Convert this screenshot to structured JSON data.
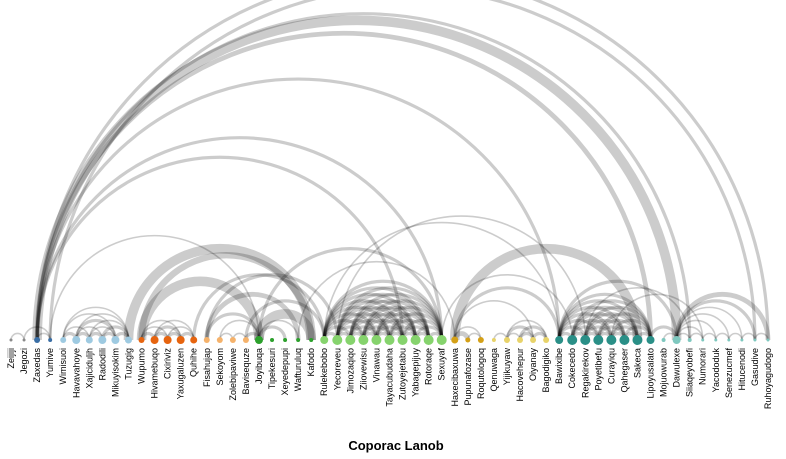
{
  "title": "Coporac Lanob",
  "group_colors": {
    "g1": "#8a8a8a",
    "g2": "#3a6ea5",
    "g3": "#9ecae1",
    "g4": "#e6640f",
    "g5": "#f5b26b",
    "g6": "#2ca02c",
    "g7": "#86d36d",
    "g8": "#d4a017",
    "g9": "#e8d36a",
    "g10": "#2a8f87",
    "g11": "#7fc8bf"
  },
  "nodes": [
    {
      "name": "Zeijiji",
      "group": "g1",
      "size": 1.5
    },
    {
      "name": "Jegozi",
      "group": "g1",
      "size": 1.5
    },
    {
      "name": "Zaxedas",
      "group": "g2",
      "size": 3
    },
    {
      "name": "Yumive",
      "group": "g2",
      "size": 2
    },
    {
      "name": "Wimisuoi",
      "group": "g3",
      "size": 3
    },
    {
      "name": "Havavahoye",
      "group": "g3",
      "size": 4
    },
    {
      "name": "Xajiciduljh",
      "group": "g3",
      "size": 3.5
    },
    {
      "name": "Radodili",
      "group": "g3",
      "size": 4
    },
    {
      "name": "Mikuyisokim",
      "group": "g3",
      "size": 4
    },
    {
      "name": "Tuzugig",
      "group": "g3",
      "size": 3.5
    },
    {
      "name": "Wupumo",
      "group": "g4",
      "size": 3
    },
    {
      "name": "Hivamebuqo",
      "group": "g4",
      "size": 4
    },
    {
      "name": "Cixiriviz",
      "group": "g4",
      "size": 4
    },
    {
      "name": "Yaxugaluzen",
      "group": "g4",
      "size": 4
    },
    {
      "name": "Quhihe",
      "group": "g4",
      "size": 3.5
    },
    {
      "name": "Fisahujap",
      "group": "g5",
      "size": 3
    },
    {
      "name": "Sekoyom",
      "group": "g5",
      "size": 3
    },
    {
      "name": "Zolebipaviwe",
      "group": "g5",
      "size": 3
    },
    {
      "name": "Bavisequze",
      "group": "g5",
      "size": 3
    },
    {
      "name": "Joyibuqa",
      "group": "g6",
      "size": 4
    },
    {
      "name": "Tipekesuri",
      "group": "g6",
      "size": 2
    },
    {
      "name": "Xeyedepupi",
      "group": "g6",
      "size": 2
    },
    {
      "name": "Wafturuluq",
      "group": "g6",
      "size": 2
    },
    {
      "name": "Kafodo",
      "group": "g6",
      "size": 2
    },
    {
      "name": "Rulekebobo",
      "group": "g7",
      "size": 4
    },
    {
      "name": "Yecoreveu",
      "group": "g7",
      "size": 5
    },
    {
      "name": "Jimozaqiqo",
      "group": "g7",
      "size": 5
    },
    {
      "name": "Ziiovewisu",
      "group": "g7",
      "size": 5
    },
    {
      "name": "Vinawau",
      "group": "g7",
      "size": 5
    },
    {
      "name": "Tayacubudaha",
      "group": "g7",
      "size": 5
    },
    {
      "name": "Zutoyejetabu",
      "group": "g7",
      "size": 5
    },
    {
      "name": "Yabagepijuy",
      "group": "g7",
      "size": 5
    },
    {
      "name": "Rotoraqe",
      "group": "g7",
      "size": 5
    },
    {
      "name": "Sexuyaf",
      "group": "g7",
      "size": 5
    },
    {
      "name": "Haxecibaxuwa",
      "group": "g8",
      "size": 3.5
    },
    {
      "name": "Pupunafozase",
      "group": "g8",
      "size": 2.5
    },
    {
      "name": "Roqutologoq",
      "group": "g8",
      "size": 3
    },
    {
      "name": "Qenuwaga",
      "group": "g9",
      "size": 2
    },
    {
      "name": "Yijikuyaw",
      "group": "g9",
      "size": 3
    },
    {
      "name": "Hacovehepur",
      "group": "g9",
      "size": 3
    },
    {
      "name": "Oiyanay",
      "group": "g9",
      "size": 3
    },
    {
      "name": "Bagodigiko",
      "group": "g9",
      "size": 3
    },
    {
      "name": "Bawixibe",
      "group": "g10",
      "size": 4
    },
    {
      "name": "Cokecedo",
      "group": "g10",
      "size": 5
    },
    {
      "name": "Regakirekov",
      "group": "g10",
      "size": 5
    },
    {
      "name": "Poyetibefu",
      "group": "g10",
      "size": 5
    },
    {
      "name": "Curayiqu",
      "group": "g10",
      "size": 5
    },
    {
      "name": "Qahegaser",
      "group": "g10",
      "size": 5
    },
    {
      "name": "Sakeca",
      "group": "g10",
      "size": 5
    },
    {
      "name": "Lipoyusalato",
      "group": "g10",
      "size": 4
    },
    {
      "name": "Mojuowurab",
      "group": "g11",
      "size": 2
    },
    {
      "name": "Dawulexe",
      "group": "g11",
      "size": 4
    },
    {
      "name": "Siiaqeyobefi",
      "group": "g11",
      "size": 2
    },
    {
      "name": "Numorari",
      "group": "g11",
      "size": 1.5
    },
    {
      "name": "Yacododuk",
      "group": "g11",
      "size": 1.5
    },
    {
      "name": "Senezucmef",
      "group": "g11",
      "size": 1.5
    },
    {
      "name": "Hitucenodi",
      "group": "g11",
      "size": 1.5
    },
    {
      "name": "Gasudive",
      "group": "g11",
      "size": 1.5
    },
    {
      "name": "Ruhoyagudogo",
      "group": "g11",
      "size": 1.5
    }
  ],
  "links": [
    [
      2,
      51,
      6
    ],
    [
      2,
      49,
      3
    ],
    [
      2,
      33,
      2
    ],
    [
      2,
      42,
      2
    ],
    [
      2,
      30,
      2
    ],
    [
      3,
      19,
      1
    ],
    [
      2,
      58,
      2
    ],
    [
      3,
      57,
      2
    ],
    [
      2,
      52,
      2
    ],
    [
      0,
      1,
      1
    ],
    [
      1,
      3,
      1
    ],
    [
      2,
      3,
      1
    ],
    [
      4,
      5,
      2
    ],
    [
      4,
      6,
      1
    ],
    [
      5,
      6,
      2
    ],
    [
      5,
      7,
      1
    ],
    [
      5,
      8,
      2
    ],
    [
      5,
      9,
      1
    ],
    [
      6,
      7,
      2
    ],
    [
      6,
      8,
      1
    ],
    [
      6,
      9,
      1
    ],
    [
      7,
      8,
      2
    ],
    [
      7,
      9,
      2
    ],
    [
      8,
      9,
      2
    ],
    [
      4,
      9,
      1
    ],
    [
      4,
      8,
      1
    ],
    [
      10,
      11,
      2
    ],
    [
      10,
      12,
      1
    ],
    [
      10,
      13,
      1
    ],
    [
      11,
      12,
      2
    ],
    [
      11,
      13,
      2
    ],
    [
      11,
      14,
      1
    ],
    [
      12,
      13,
      2
    ],
    [
      12,
      14,
      1
    ],
    [
      13,
      14,
      2
    ],
    [
      9,
      23,
      6
    ],
    [
      10,
      23,
      4
    ],
    [
      10,
      19,
      6
    ],
    [
      14,
      24,
      2
    ],
    [
      15,
      19,
      2
    ],
    [
      15,
      22,
      3
    ],
    [
      15,
      25,
      2
    ],
    [
      16,
      17,
      1
    ],
    [
      16,
      19,
      1
    ],
    [
      17,
      18,
      1
    ],
    [
      18,
      19,
      2
    ],
    [
      19,
      21,
      2
    ],
    [
      19,
      23,
      6
    ],
    [
      18,
      24,
      2
    ],
    [
      19,
      22,
      1
    ],
    [
      19,
      33,
      2
    ],
    [
      24,
      25,
      2
    ],
    [
      24,
      26,
      2
    ],
    [
      24,
      27,
      2
    ],
    [
      24,
      28,
      2
    ],
    [
      24,
      29,
      2
    ],
    [
      24,
      30,
      2
    ],
    [
      24,
      31,
      2
    ],
    [
      24,
      32,
      2
    ],
    [
      24,
      33,
      2
    ],
    [
      25,
      26,
      2
    ],
    [
      25,
      27,
      2
    ],
    [
      25,
      28,
      2
    ],
    [
      25,
      29,
      2
    ],
    [
      25,
      30,
      2
    ],
    [
      25,
      31,
      2
    ],
    [
      25,
      32,
      2
    ],
    [
      25,
      33,
      2
    ],
    [
      26,
      27,
      2
    ],
    [
      26,
      28,
      2
    ],
    [
      26,
      29,
      2
    ],
    [
      26,
      30,
      2
    ],
    [
      26,
      31,
      2
    ],
    [
      26,
      32,
      2
    ],
    [
      26,
      33,
      2
    ],
    [
      27,
      28,
      2
    ],
    [
      27,
      29,
      2
    ],
    [
      27,
      30,
      2
    ],
    [
      27,
      31,
      2
    ],
    [
      27,
      32,
      2
    ],
    [
      27,
      33,
      2
    ],
    [
      28,
      29,
      2
    ],
    [
      28,
      30,
      2
    ],
    [
      28,
      31,
      2
    ],
    [
      28,
      32,
      2
    ],
    [
      28,
      33,
      2
    ],
    [
      29,
      30,
      2
    ],
    [
      29,
      31,
      2
    ],
    [
      29,
      32,
      2
    ],
    [
      29,
      33,
      2
    ],
    [
      30,
      31,
      2
    ],
    [
      30,
      32,
      2
    ],
    [
      30,
      33,
      2
    ],
    [
      31,
      32,
      2
    ],
    [
      31,
      33,
      2
    ],
    [
      32,
      33,
      2
    ],
    [
      22,
      34,
      1
    ],
    [
      24,
      42,
      1
    ],
    [
      25,
      44,
      1
    ],
    [
      33,
      43,
      1
    ],
    [
      34,
      35,
      3
    ],
    [
      34,
      36,
      1
    ],
    [
      35,
      36,
      1
    ],
    [
      34,
      42,
      2
    ],
    [
      34,
      48,
      6
    ],
    [
      34,
      40,
      1
    ],
    [
      38,
      39,
      1
    ],
    [
      38,
      40,
      2
    ],
    [
      38,
      41,
      1
    ],
    [
      39,
      40,
      2
    ],
    [
      39,
      41,
      2
    ],
    [
      40,
      41,
      2
    ],
    [
      37,
      38,
      1
    ],
    [
      42,
      43,
      2
    ],
    [
      42,
      44,
      2
    ],
    [
      42,
      45,
      2
    ],
    [
      42,
      46,
      2
    ],
    [
      42,
      47,
      2
    ],
    [
      42,
      48,
      2
    ],
    [
      42,
      49,
      2
    ],
    [
      43,
      44,
      2
    ],
    [
      43,
      45,
      2
    ],
    [
      43,
      46,
      2
    ],
    [
      43,
      47,
      2
    ],
    [
      43,
      48,
      2
    ],
    [
      43,
      49,
      2
    ],
    [
      44,
      45,
      2
    ],
    [
      44,
      46,
      2
    ],
    [
      44,
      47,
      2
    ],
    [
      44,
      48,
      2
    ],
    [
      44,
      49,
      2
    ],
    [
      45,
      46,
      2
    ],
    [
      45,
      47,
      2
    ],
    [
      45,
      48,
      2
    ],
    [
      45,
      49,
      2
    ],
    [
      46,
      47,
      2
    ],
    [
      46,
      48,
      2
    ],
    [
      46,
      49,
      2
    ],
    [
      47,
      48,
      2
    ],
    [
      47,
      49,
      2
    ],
    [
      48,
      49,
      2
    ],
    [
      42,
      51,
      2
    ],
    [
      44,
      52,
      1
    ],
    [
      46,
      53,
      1
    ],
    [
      49,
      51,
      2
    ],
    [
      51,
      52,
      1
    ],
    [
      51,
      53,
      1
    ],
    [
      51,
      54,
      1
    ],
    [
      51,
      55,
      1
    ],
    [
      51,
      56,
      1
    ],
    [
      51,
      57,
      2
    ],
    [
      51,
      58,
      3
    ],
    [
      52,
      53,
      1
    ],
    [
      53,
      54,
      1
    ],
    [
      54,
      55,
      1
    ],
    [
      55,
      56,
      1
    ],
    [
      56,
      57,
      1
    ],
    [
      57,
      58,
      1
    ],
    [
      50,
      51,
      1
    ]
  ]
}
